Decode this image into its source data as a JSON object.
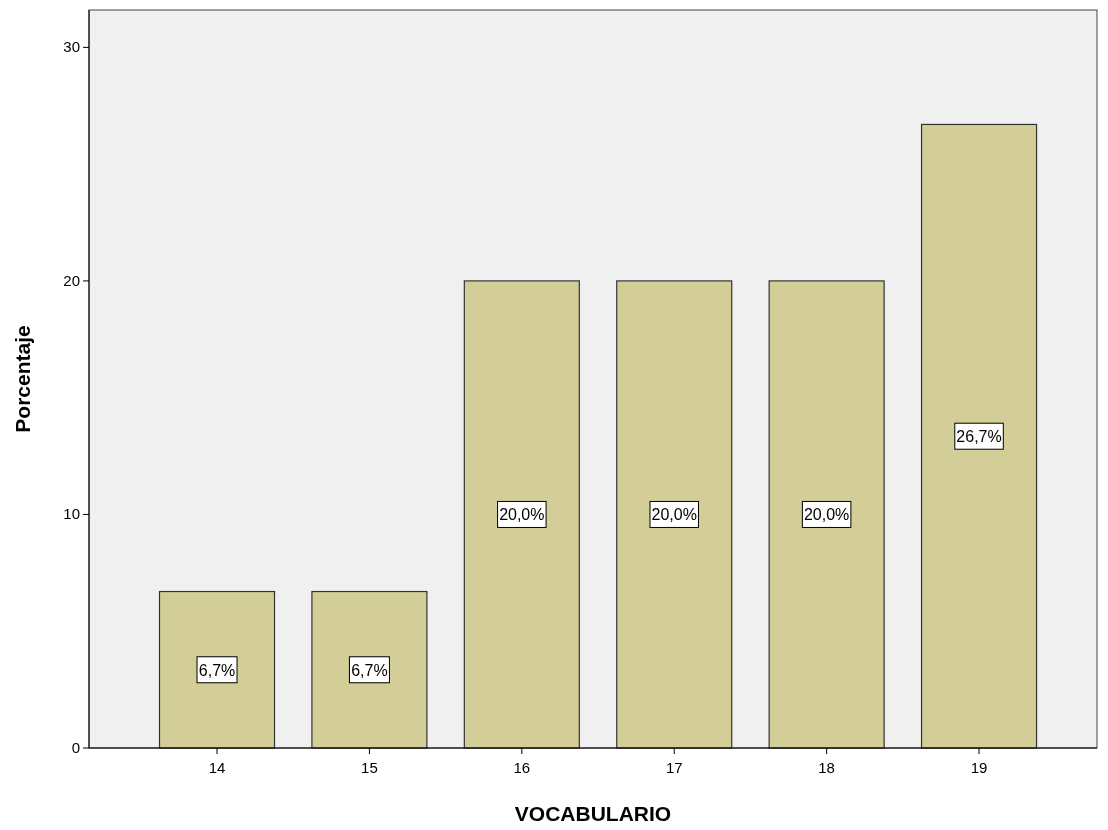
{
  "chart_data": {
    "type": "bar",
    "xlabel": "VOCABULARIO",
    "ylabel": "Porcentaje",
    "categories": [
      "14",
      "15",
      "16",
      "17",
      "18",
      "19"
    ],
    "values": [
      6.7,
      6.7,
      20.0,
      20.0,
      20.0,
      26.7
    ],
    "value_labels": [
      "6,7%",
      "6,7%",
      "20,0%",
      "20,0%",
      "20,0%",
      "26,7%"
    ],
    "color": "#d3ce97",
    "ylim": [
      0,
      31.6
    ],
    "yticks": [
      0,
      10,
      20,
      30
    ],
    "grid": false
  }
}
